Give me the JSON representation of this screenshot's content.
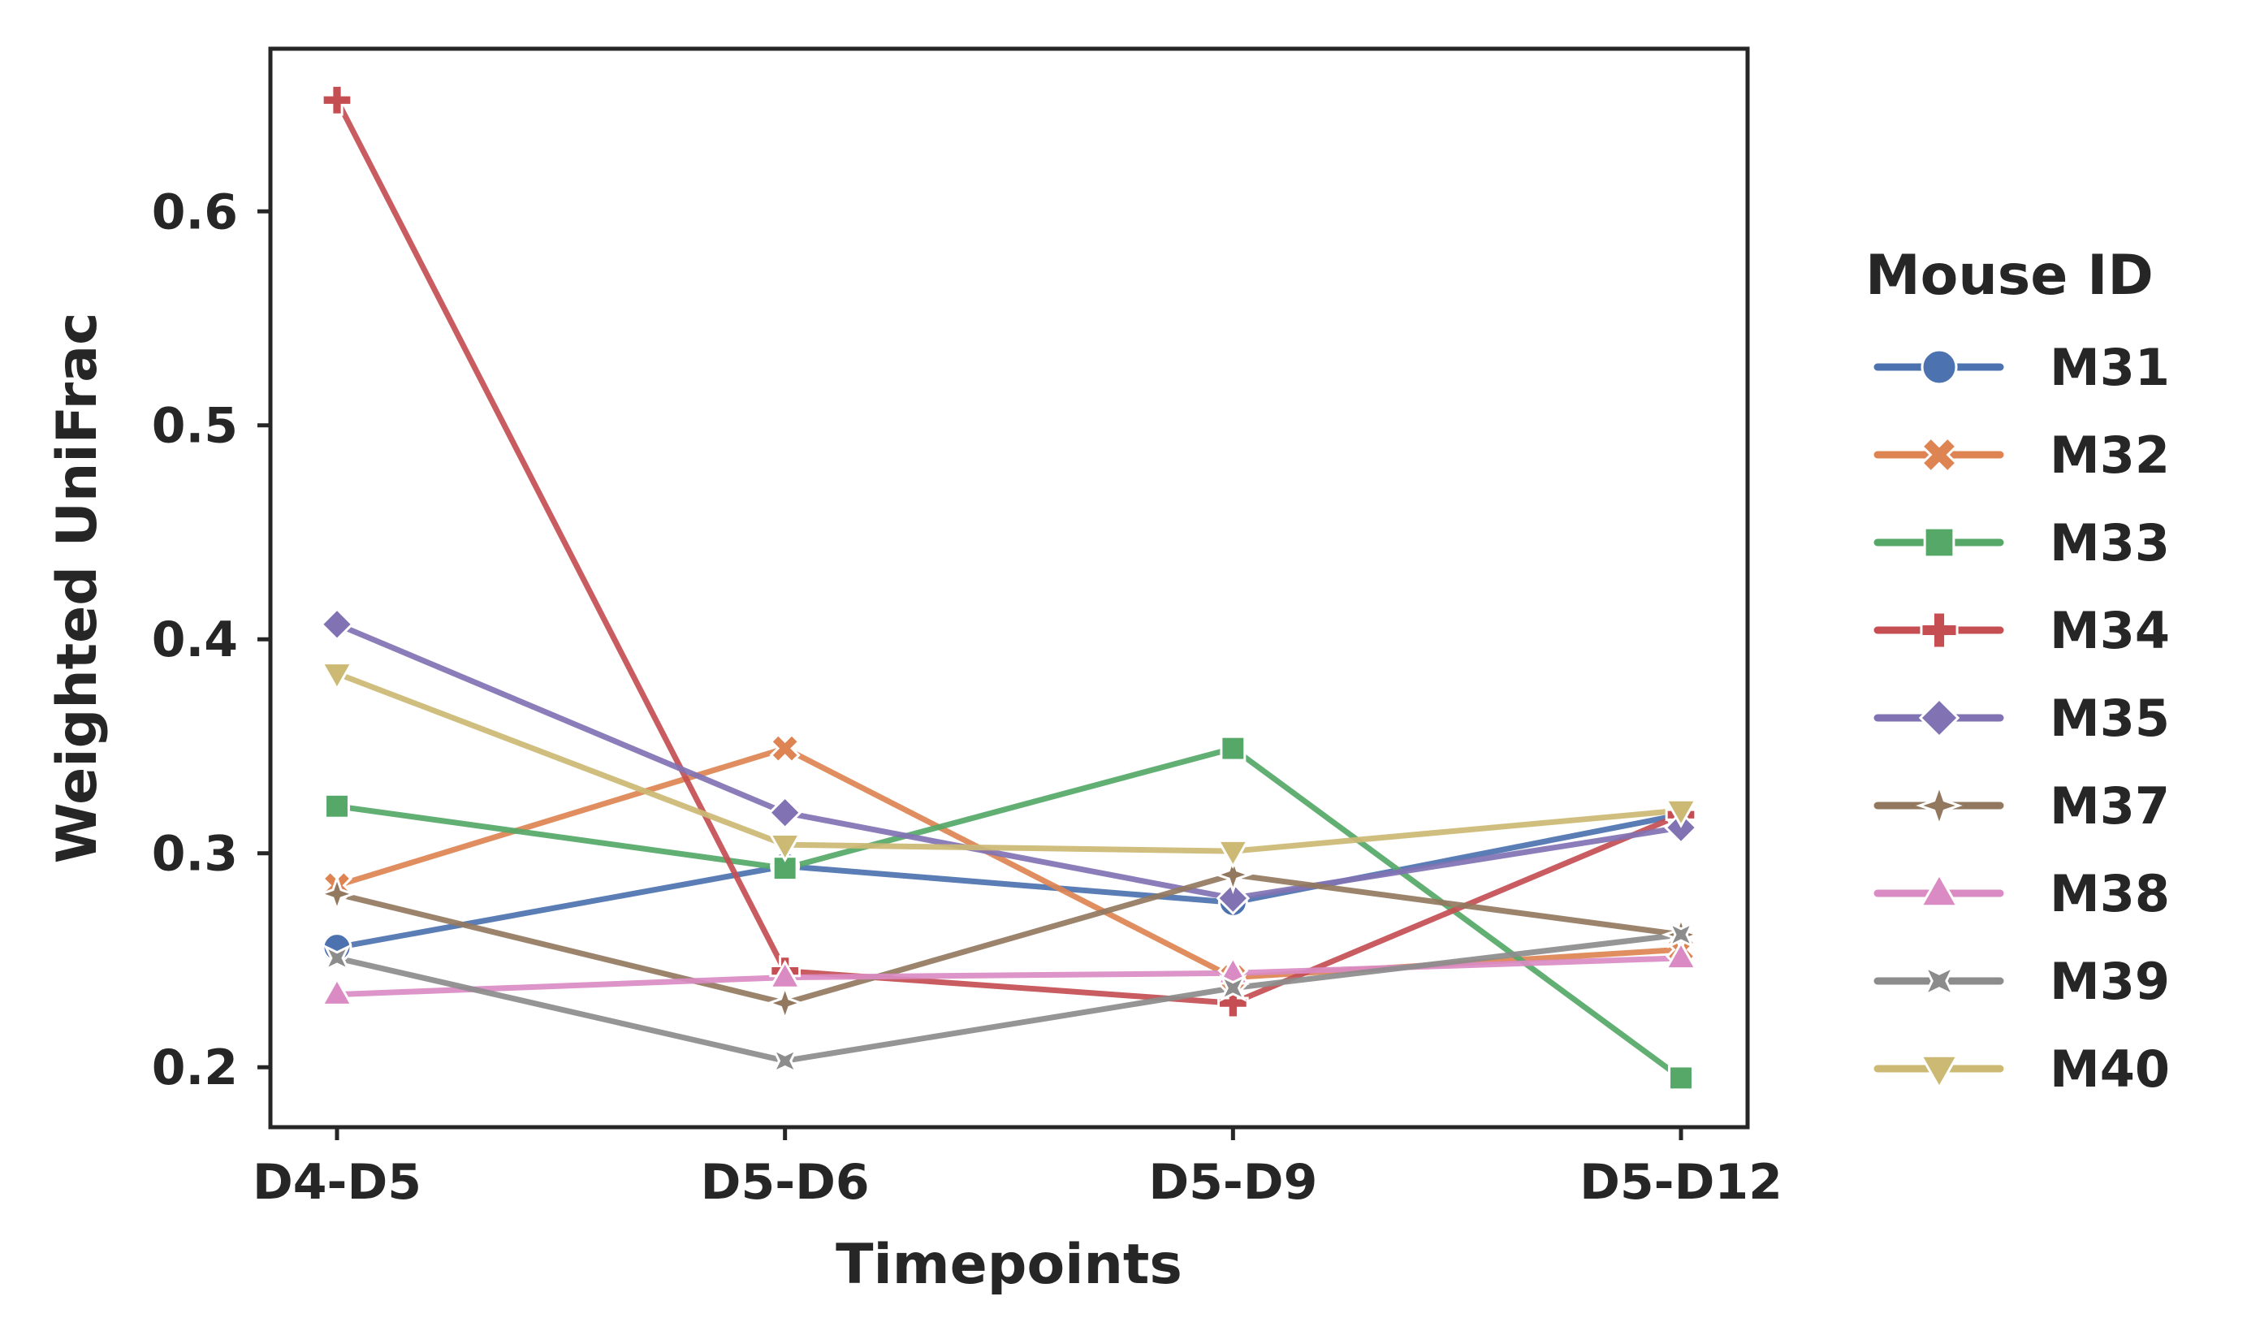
{
  "chart_data": {
    "type": "line",
    "title": "",
    "xlabel": "Timepoints",
    "ylabel": "Weighted UniFrac",
    "categories": [
      "D4-D5",
      "D5-D6",
      "D5-D9",
      "D5-D12"
    ],
    "y_ticks": [
      "0.2",
      "0.3",
      "0.4",
      "0.5",
      "0.6"
    ],
    "ylim": [
      0.172,
      0.676
    ],
    "grid": false,
    "legend": {
      "title": "Mouse ID",
      "placement": "outside-right"
    },
    "series": [
      {
        "name": "M31",
        "color": "#4c72b0",
        "marker": "circle",
        "values": [
          0.256,
          0.294,
          0.277,
          0.318
        ]
      },
      {
        "name": "M32",
        "color": "#dd8452",
        "marker": "x",
        "values": [
          0.285,
          0.349,
          0.242,
          0.255
        ]
      },
      {
        "name": "M33",
        "color": "#55a868",
        "marker": "square",
        "values": [
          0.322,
          0.293,
          0.349,
          0.195
        ]
      },
      {
        "name": "M34",
        "color": "#c44e52",
        "marker": "plus",
        "values": [
          0.652,
          0.245,
          0.23,
          0.318
        ]
      },
      {
        "name": "M35",
        "color": "#8172b3",
        "marker": "diamond",
        "values": [
          0.407,
          0.319,
          0.279,
          0.312
        ]
      },
      {
        "name": "M37",
        "color": "#937860",
        "marker": "star4",
        "values": [
          0.281,
          0.23,
          0.29,
          0.262
        ]
      },
      {
        "name": "M38",
        "color": "#da8bc3",
        "marker": "triangle-up",
        "values": [
          0.234,
          0.242,
          0.244,
          0.251
        ]
      },
      {
        "name": "M39",
        "color": "#8c8c8c",
        "marker": "star4x",
        "values": [
          0.251,
          0.203,
          0.237,
          0.262
        ]
      },
      {
        "name": "M40",
        "color": "#ccb974",
        "marker": "triangle-down",
        "values": [
          0.384,
          0.304,
          0.301,
          0.32
        ]
      }
    ]
  }
}
